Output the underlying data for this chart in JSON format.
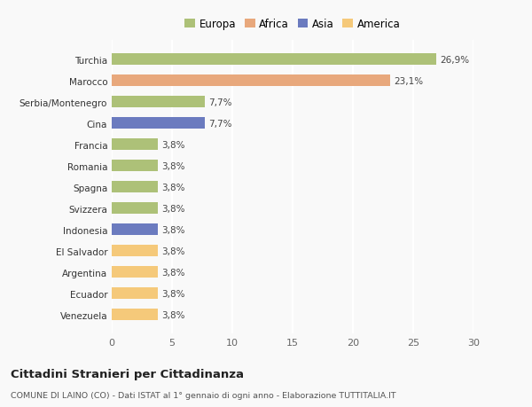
{
  "categories": [
    "Venezuela",
    "Ecuador",
    "Argentina",
    "El Salvador",
    "Indonesia",
    "Svizzera",
    "Spagna",
    "Romania",
    "Francia",
    "Cina",
    "Serbia/Montenegro",
    "Marocco",
    "Turchia"
  ],
  "values": [
    3.8,
    3.8,
    3.8,
    3.8,
    3.8,
    3.8,
    3.8,
    3.8,
    3.8,
    7.7,
    7.7,
    23.1,
    26.9
  ],
  "colors": [
    "#f5c97a",
    "#f5c97a",
    "#f5c97a",
    "#f5c97a",
    "#6b7bbf",
    "#adc178",
    "#adc178",
    "#adc178",
    "#adc178",
    "#6b7bbf",
    "#adc178",
    "#e8a87c",
    "#adc178"
  ],
  "labels": [
    "3,8%",
    "3,8%",
    "3,8%",
    "3,8%",
    "3,8%",
    "3,8%",
    "3,8%",
    "3,8%",
    "3,8%",
    "7,7%",
    "7,7%",
    "23,1%",
    "26,9%"
  ],
  "legend": [
    {
      "label": "Europa",
      "color": "#adc178"
    },
    {
      "label": "Africa",
      "color": "#e8a87c"
    },
    {
      "label": "Asia",
      "color": "#6b7bbf"
    },
    {
      "label": "America",
      "color": "#f5c97a"
    }
  ],
  "xlim": [
    0,
    30
  ],
  "xticks": [
    0,
    5,
    10,
    15,
    20,
    25,
    30
  ],
  "title": "Cittadini Stranieri per Cittadinanza",
  "subtitle": "COMUNE DI LAINO (CO) - Dati ISTAT al 1° gennaio di ogni anno - Elaborazione TUTTITALIA.IT",
  "bg_color": "#f9f9f9",
  "grid_color": "#ffffff",
  "bar_height": 0.55
}
